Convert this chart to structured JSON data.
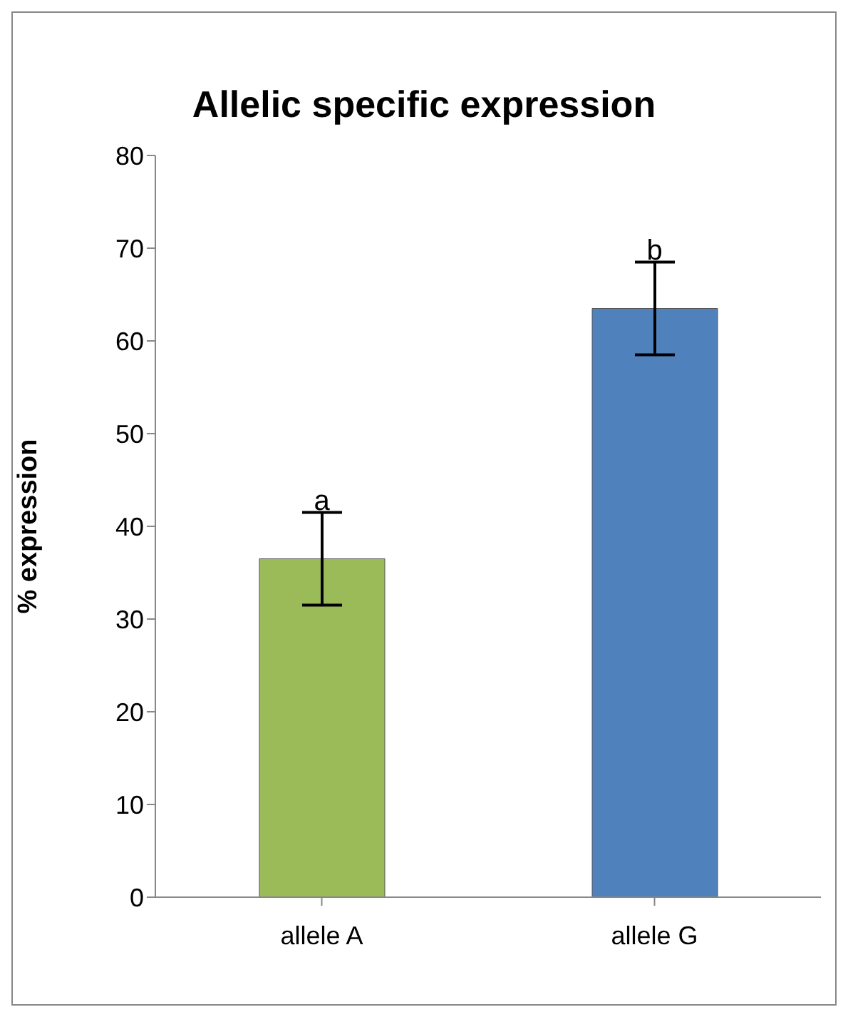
{
  "chart_data": {
    "type": "bar",
    "title": "Allelic specific expression",
    "ylabel": "% expression",
    "categories": [
      "allele A",
      "allele G"
    ],
    "values": [
      36.5,
      63.5
    ],
    "errors": [
      5,
      5
    ],
    "colors": [
      "#9bbb59",
      "#4f81bd"
    ],
    "ylim": [
      0,
      80
    ],
    "yticks": [
      0,
      10,
      20,
      30,
      40,
      50,
      60,
      70,
      80
    ],
    "annotations": [
      {
        "text": "a",
        "x": "allele A",
        "y": 41.5
      },
      {
        "text": "b",
        "x": "allele G",
        "y": 68.5
      }
    ]
  }
}
